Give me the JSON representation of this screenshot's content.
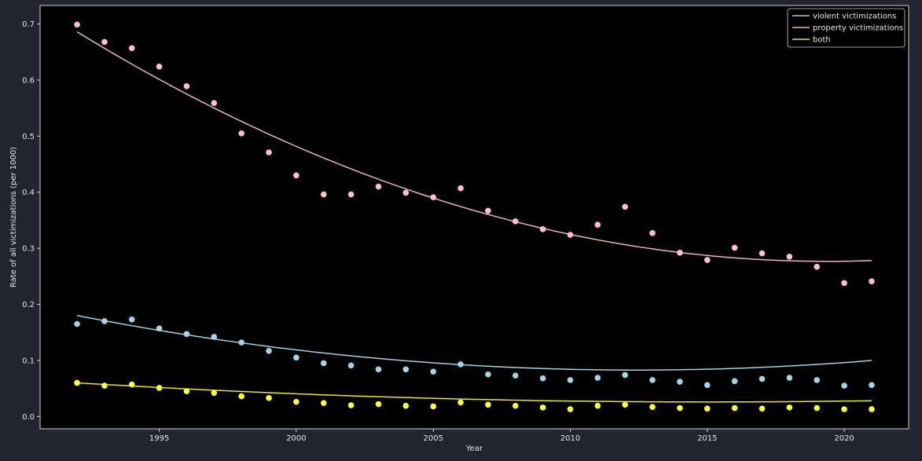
{
  "chart_data": {
    "type": "scatter",
    "title": "",
    "xlabel": "Year",
    "ylabel": "Rate of all victimizations (per 1000)",
    "xlim": [
      1990.65,
      2022.35
    ],
    "ylim": [
      -0.022,
      0.733
    ],
    "xticks": [
      1995,
      2000,
      2005,
      2010,
      2015,
      2020
    ],
    "yticks": [
      0.0,
      0.1,
      0.2,
      0.3,
      0.4,
      0.5,
      0.6,
      0.7
    ],
    "ytick_labels": [
      "0.0",
      "0.1",
      "0.2",
      "0.3",
      "0.4",
      "0.5",
      "0.6",
      "0.7"
    ],
    "grid": false,
    "legend_position": "top-right",
    "x": [
      1992,
      1993,
      1994,
      1995,
      1996,
      1997,
      1998,
      1999,
      2000,
      2001,
      2002,
      2003,
      2004,
      2005,
      2006,
      2007,
      2008,
      2009,
      2010,
      2011,
      2012,
      2013,
      2014,
      2015,
      2016,
      2017,
      2018,
      2019,
      2020,
      2021
    ],
    "series": [
      {
        "name": "violent victimizations",
        "line_color": "#a6cfe0",
        "marker_color": "#a6d4e6",
        "values": [
          0.165,
          0.17,
          0.173,
          0.157,
          0.147,
          0.142,
          0.132,
          0.117,
          0.105,
          0.095,
          0.091,
          0.084,
          0.084,
          0.08,
          0.093,
          0.075,
          0.073,
          0.068,
          0.065,
          0.069,
          0.074,
          0.065,
          0.062,
          0.056,
          0.063,
          0.067,
          0.069,
          0.065,
          0.055,
          0.056
        ],
        "fit": [
          0.18,
          -0.00952,
          0.000233
        ]
      },
      {
        "name": "property victimizations",
        "line_color": "#e8b4c0",
        "marker_color": "#ffc0cb",
        "values": [
          0.699,
          0.668,
          0.657,
          0.624,
          0.589,
          0.559,
          0.505,
          0.471,
          0.43,
          0.396,
          0.396,
          0.41,
          0.399,
          0.391,
          0.407,
          0.367,
          0.348,
          0.334,
          0.324,
          0.342,
          0.374,
          0.327,
          0.292,
          0.279,
          0.301,
          0.291,
          0.285,
          0.267,
          0.238,
          0.241
        ],
        "fit": [
          0.686,
          -0.0299,
          0.000546
        ]
      },
      {
        "name": "both",
        "line_color": "#e6e62e",
        "marker_color": "#ffff40",
        "values": [
          0.06,
          0.055,
          0.057,
          0.051,
          0.045,
          0.042,
          0.036,
          0.033,
          0.026,
          0.024,
          0.02,
          0.022,
          0.019,
          0.018,
          0.025,
          0.021,
          0.019,
          0.016,
          0.013,
          0.019,
          0.021,
          0.017,
          0.015,
          0.014,
          0.015,
          0.014,
          0.016,
          0.015,
          0.013,
          0.013
        ],
        "fit": [
          0.06,
          -0.00296,
          6.42e-05
        ]
      }
    ]
  },
  "colors": {
    "figure_bg": "#22252f",
    "axes_bg": "#000000",
    "spine": "#e6e6e6",
    "legend_bg": "#000000",
    "legend_border": "#cfcfcf"
  }
}
